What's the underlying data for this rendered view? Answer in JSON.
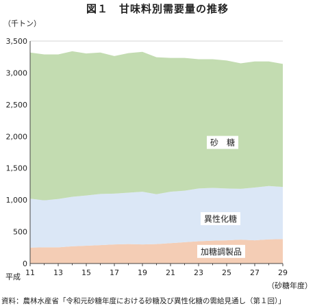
{
  "figure": {
    "title": "図１　甘味料別需要量の推移",
    "unit": "（千トン）",
    "source": "資料：農林水産省「令和元砂糖年度における砂糖及び異性化糖の需給見通し（第１回）」"
  },
  "colors": {
    "sugar": "#c3dcb1",
    "hfcs": "#dbe7f6",
    "processed": "#f4cdb5",
    "grid": "#c8c8c8",
    "axis": "#444444"
  },
  "chart_data": {
    "type": "area",
    "stacked": true,
    "era_label": "平成",
    "xlabel": "（砂糖年度）",
    "ylabel": "（千トン）",
    "x": [
      11,
      12,
      13,
      14,
      15,
      16,
      17,
      18,
      19,
      20,
      21,
      22,
      23,
      24,
      25,
      26,
      27,
      28,
      29
    ],
    "x_tick_labels": [
      "11",
      "13",
      "15",
      "17",
      "19",
      "21",
      "23",
      "25",
      "27",
      "29"
    ],
    "ylim": [
      0,
      3500
    ],
    "y_ticks": [
      0,
      500,
      1000,
      1500,
      2000,
      2500,
      3000,
      3500
    ],
    "y_tick_labels": [
      "0",
      "500",
      "1,000",
      "1,500",
      "2,000",
      "2,500",
      "3,000",
      "3,500"
    ],
    "grid": "horizontal",
    "series": [
      {
        "name": "加糖調製品",
        "key": "processed",
        "values": [
          250,
          255,
          255,
          270,
          280,
          290,
          300,
          305,
          300,
          305,
          320,
          335,
          350,
          360,
          365,
          375,
          365,
          380,
          385
        ]
      },
      {
        "name": "異性化糖",
        "key": "hfcs",
        "values": [
          770,
          740,
          760,
          780,
          790,
          805,
          800,
          810,
          830,
          785,
          810,
          810,
          830,
          830,
          815,
          800,
          830,
          840,
          820
        ]
      },
      {
        "name": "砂　糖",
        "key": "sugar",
        "values": [
          2300,
          2295,
          2275,
          2290,
          2235,
          2225,
          2165,
          2195,
          2200,
          2155,
          2105,
          2090,
          2035,
          2025,
          2015,
          1975,
          1985,
          1960,
          1935
        ]
      }
    ]
  }
}
